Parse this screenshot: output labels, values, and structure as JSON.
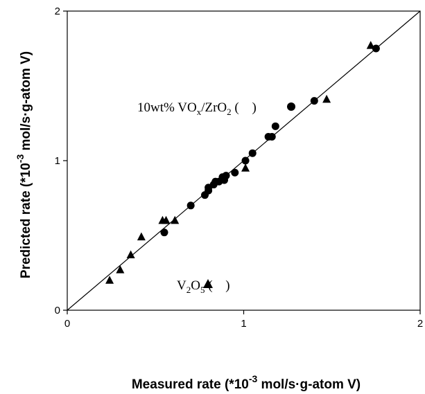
{
  "chart_data": {
    "type": "scatter",
    "title": "",
    "xlabel": {
      "main": "Measured rate (*10",
      "sup": "-3",
      "rest": " mol/s·g-atom V)"
    },
    "ylabel": {
      "main": "Predicted rate (*10",
      "sup": "-3",
      "rest": " mol/s·g-atom V)"
    },
    "xlim": [
      0,
      2
    ],
    "ylim": [
      0,
      2
    ],
    "xticks": [
      "0",
      "1",
      "2"
    ],
    "yticks": [
      "0",
      "1",
      "2"
    ],
    "grid": false,
    "legend": "none",
    "parity_line": [
      [
        0,
        0
      ],
      [
        2,
        2
      ]
    ],
    "series": [
      {
        "marker": "circle",
        "label_parts": [
          "10wt% VO",
          "x",
          "/ZrO",
          "2",
          " (",
          ")"
        ],
        "points": [
          [
            0.55,
            0.52
          ],
          [
            0.7,
            0.7
          ],
          [
            0.78,
            0.77
          ],
          [
            0.8,
            0.8
          ],
          [
            0.8,
            0.82
          ],
          [
            0.83,
            0.84
          ],
          [
            0.84,
            0.86
          ],
          [
            0.86,
            0.86
          ],
          [
            0.88,
            0.89
          ],
          [
            0.89,
            0.87
          ],
          [
            0.9,
            0.9
          ],
          [
            0.95,
            0.92
          ],
          [
            1.01,
            1.0
          ],
          [
            1.05,
            1.05
          ],
          [
            1.14,
            1.16
          ],
          [
            1.16,
            1.16
          ],
          [
            1.18,
            1.23
          ],
          [
            1.4,
            1.4
          ],
          [
            1.75,
            1.75
          ]
        ]
      },
      {
        "marker": "triangle",
        "label_parts": [
          "V",
          "2",
          "O",
          "5",
          " (",
          ")"
        ],
        "points": [
          [
            0.24,
            0.2
          ],
          [
            0.3,
            0.27
          ],
          [
            0.36,
            0.37
          ],
          [
            0.42,
            0.49
          ],
          [
            0.54,
            0.6
          ],
          [
            0.56,
            0.6
          ],
          [
            0.61,
            0.6
          ],
          [
            1.01,
            0.95
          ],
          [
            1.47,
            1.41
          ],
          [
            1.72,
            1.77
          ]
        ]
      }
    ]
  }
}
